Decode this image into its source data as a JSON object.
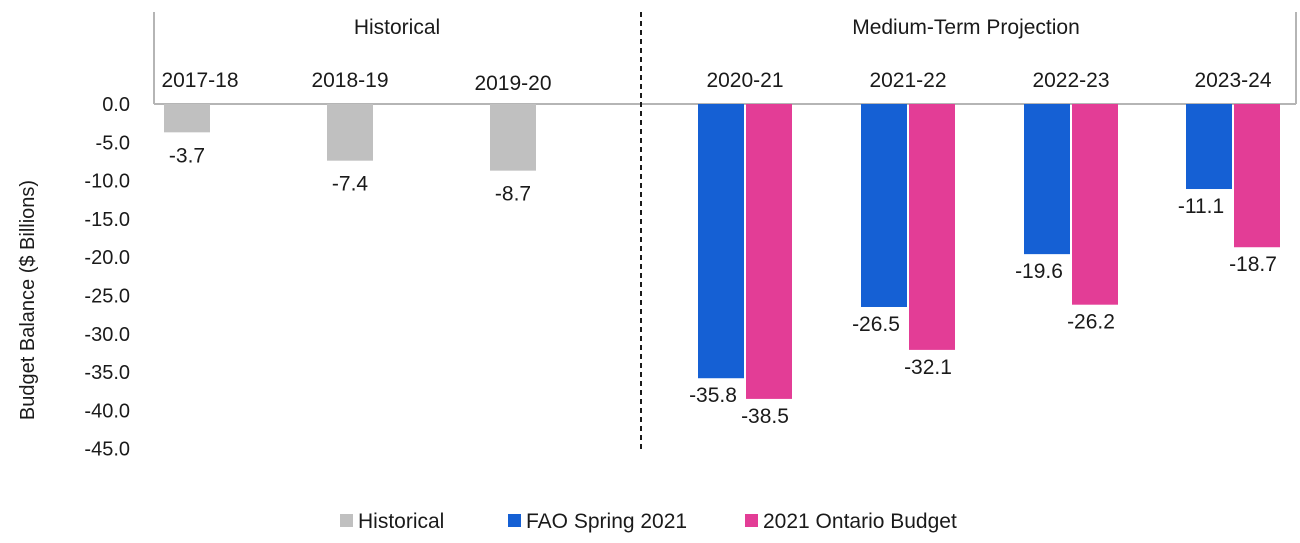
{
  "chart_data": {
    "type": "bar",
    "ylabel": "Budget Balance ($ Billions)",
    "ylim": [
      -45,
      0
    ],
    "yticks": [
      "0.0",
      "-5.0",
      "-10.0",
      "-15.0",
      "-20.0",
      "-25.0",
      "-30.0",
      "-35.0",
      "-40.0",
      "-45.0"
    ],
    "groups": [
      {
        "label": "Historical",
        "categories": [
          "2017-18",
          "2018-19",
          "2019-20"
        ]
      },
      {
        "label": "Medium-Term Projection",
        "categories": [
          "2020-21",
          "2021-22",
          "2022-23",
          "2023-24"
        ]
      }
    ],
    "categories": [
      "2017-18",
      "2018-19",
      "2019-20",
      "2020-21",
      "2021-22",
      "2022-23",
      "2023-24"
    ],
    "series": [
      {
        "name": "Historical",
        "color": "#c0c0c0",
        "values": [
          -3.7,
          -7.4,
          -8.7,
          null,
          null,
          null,
          null
        ]
      },
      {
        "name": "FAO Spring 2021",
        "color": "#1560d4",
        "values": [
          null,
          null,
          null,
          -35.8,
          -26.5,
          -19.6,
          -11.1
        ]
      },
      {
        "name": "2021 Ontario Budget",
        "color": "#e33d96",
        "values": [
          null,
          null,
          null,
          -38.5,
          -32.1,
          -26.2,
          -18.7
        ]
      }
    ],
    "data_labels": {
      "historical": [
        "-3.7",
        "-7.4",
        "-8.7"
      ],
      "fao": [
        "-35.8",
        "-26.5",
        "-19.6",
        "-11.1"
      ],
      "budget": [
        "-38.5",
        "-32.1",
        "-26.2",
        "-18.7"
      ]
    },
    "legend_position": "bottom"
  }
}
